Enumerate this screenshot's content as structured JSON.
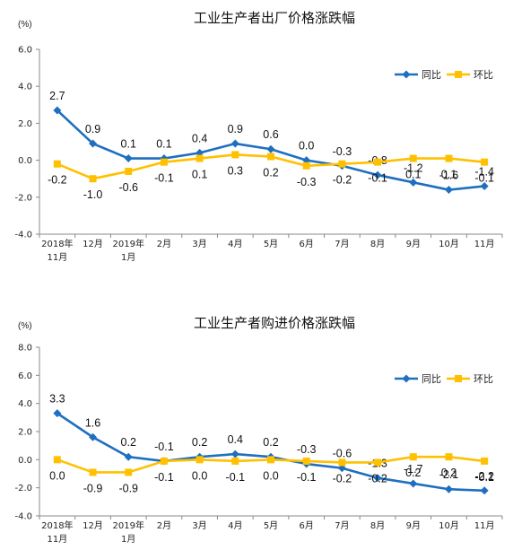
{
  "chart_data": [
    {
      "type": "line",
      "title": "工业生产者出厂价格涨跌幅",
      "unit": "(%)",
      "categories": [
        [
          "2018年",
          "11月"
        ],
        [
          "12月"
        ],
        [
          "2019年",
          "1月"
        ],
        [
          "2月"
        ],
        [
          "3月"
        ],
        [
          "4月"
        ],
        [
          "5月"
        ],
        [
          "6月"
        ],
        [
          "7月"
        ],
        [
          "8月"
        ],
        [
          "9月"
        ],
        [
          "10月"
        ],
        [
          "11月"
        ]
      ],
      "ylim": [
        -4.0,
        6.0
      ],
      "yticks": [
        "6.0",
        "4.0",
        "2.0",
        "0.0",
        "-2.0",
        "-4.0"
      ],
      "legend_position": "top-right",
      "series": [
        {
          "name": "同比",
          "color": "#1f6fc1",
          "marker": "diamond",
          "values": [
            2.7,
            0.9,
            0.1,
            0.1,
            0.4,
            0.9,
            0.6,
            0.0,
            -0.3,
            -0.8,
            -1.2,
            -1.6,
            -1.4
          ],
          "labels": [
            "2.7",
            "0.9",
            "0.1",
            "0.1",
            "0.4",
            "0.9",
            "0.6",
            "0.0",
            "-0.3",
            "-0.8",
            "-1.2",
            "-1.6",
            "-1.4"
          ]
        },
        {
          "name": "环比",
          "color": "#ffc000",
          "marker": "square",
          "values": [
            -0.2,
            -1.0,
            -0.6,
            -0.1,
            0.1,
            0.3,
            0.2,
            -0.3,
            -0.2,
            -0.1,
            0.1,
            0.1,
            -0.1
          ],
          "labels": [
            "-0.2",
            "-1.0",
            "-0.6",
            "-0.1",
            "0.1",
            "0.3",
            "0.2",
            "-0.3",
            "-0.2",
            "-0.1",
            "0.1",
            "0.1",
            "-0.1"
          ]
        }
      ]
    },
    {
      "type": "line",
      "title": "工业生产者购进价格涨跌幅",
      "unit": "(%)",
      "categories": [
        [
          "2018年",
          "11月"
        ],
        [
          "12月"
        ],
        [
          "2019年",
          "1月"
        ],
        [
          "2月"
        ],
        [
          "3月"
        ],
        [
          "4月"
        ],
        [
          "5月"
        ],
        [
          "6月"
        ],
        [
          "7月"
        ],
        [
          "8月"
        ],
        [
          "9月"
        ],
        [
          "10月"
        ],
        [
          "11月"
        ]
      ],
      "ylim": [
        -4.0,
        8.0
      ],
      "yticks": [
        "8.0",
        "6.0",
        "4.0",
        "2.0",
        "0.0",
        "-2.0",
        "-4.0"
      ],
      "legend_position": "top-right",
      "series": [
        {
          "name": "同比",
          "color": "#1f6fc1",
          "marker": "diamond",
          "values": [
            3.3,
            1.6,
            0.2,
            -0.1,
            0.2,
            0.4,
            0.2,
            -0.3,
            -0.6,
            -1.3,
            -1.7,
            -2.1,
            -2.2
          ],
          "labels": [
            "3.3",
            "1.6",
            "0.2",
            "-0.1",
            "0.2",
            "0.4",
            "0.2",
            "-0.3",
            "-0.6",
            "-1.3",
            "-1.7",
            "-2.1",
            "-2.2"
          ]
        },
        {
          "name": "环比",
          "color": "#ffc000",
          "marker": "square",
          "values": [
            0.0,
            -0.9,
            -0.9,
            -0.1,
            0.0,
            -0.1,
            0.0,
            -0.1,
            -0.2,
            -0.2,
            0.2,
            0.2,
            -0.1
          ],
          "labels": [
            "0.0",
            "-0.9",
            "-0.9",
            "-0.1",
            "0.0",
            "-0.1",
            "0.0",
            "-0.1",
            "-0.2",
            "-0.2",
            "0.2",
            "0.2",
            "-0.1"
          ]
        }
      ]
    }
  ]
}
